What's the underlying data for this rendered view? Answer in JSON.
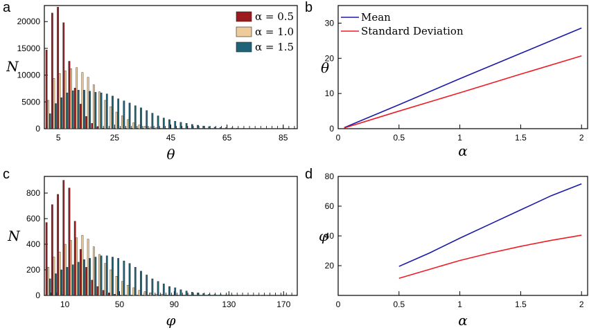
{
  "colors": {
    "alpha05": "#9B1B1E",
    "alpha10": "#EDCB9A",
    "alpha15": "#1F6378",
    "mean": "#1A1AA8",
    "std": "#EE1C25"
  },
  "chart_data": [
    {
      "panel": "a",
      "type": "bar",
      "xlabel": "θ",
      "ylabel": "N",
      "ylim": [
        0,
        23000
      ],
      "xlim": [
        0,
        90
      ],
      "xticks": [
        5,
        25,
        45,
        65,
        85
      ],
      "yticks": [
        0,
        5000,
        10000,
        15000,
        20000
      ],
      "bin_start": 1,
      "bin_width": 2,
      "legend": [
        "α = 0.5",
        "α = 1.0",
        "α = 1.5"
      ],
      "legend_position": "top-right",
      "series": [
        {
          "name": "α = 0.5",
          "values": [
            14700,
            21600,
            22700,
            19800,
            12600,
            7600,
            4600,
            2300,
            1000,
            350,
            100,
            30,
            10,
            0,
            0,
            0,
            0,
            0,
            0,
            0,
            0,
            0,
            0,
            0,
            0,
            0,
            0,
            0,
            0,
            0,
            0,
            0,
            0,
            0,
            0,
            0,
            0,
            0,
            0,
            0,
            0,
            0,
            0,
            0
          ]
        },
        {
          "name": "α = 1.0",
          "values": [
            5300,
            9400,
            10300,
            10800,
            11200,
            11400,
            10500,
            9600,
            8200,
            6900,
            5300,
            4100,
            3100,
            2400,
            1700,
            1100,
            700,
            450,
            300,
            200,
            120,
            80,
            50,
            30,
            20,
            10,
            0,
            0,
            0,
            0,
            0,
            0,
            0,
            0,
            0,
            0,
            0,
            0,
            0,
            0,
            0,
            0,
            0,
            0
          ]
        },
        {
          "name": "α = 1.5",
          "values": [
            2800,
            4700,
            5800,
            6700,
            7100,
            7200,
            7200,
            7000,
            6800,
            6700,
            6500,
            6100,
            5600,
            5200,
            4800,
            4300,
            3900,
            3400,
            2900,
            2400,
            2000,
            1700,
            1400,
            1200,
            1000,
            800,
            650,
            500,
            400,
            300,
            250,
            200,
            150,
            110,
            80,
            60,
            40,
            30,
            20,
            10,
            10,
            0,
            0,
            0
          ]
        }
      ]
    },
    {
      "panel": "b",
      "type": "line",
      "xlabel": "α",
      "ylabel": "θ",
      "xlim": [
        0,
        2.05
      ],
      "ylim": [
        0,
        35
      ],
      "xticks": [
        0,
        0.5,
        1,
        1.5,
        2
      ],
      "yticks": [
        0,
        10,
        20,
        30
      ],
      "legend_position": "top-left",
      "series": [
        {
          "name": "Mean",
          "x": [
            0.05,
            0.5,
            1.0,
            1.5,
            2.0
          ],
          "y": [
            0.3,
            6.8,
            14.2,
            21.4,
            28.6
          ]
        },
        {
          "name": "Standard Deviation",
          "x": [
            0.05,
            0.5,
            1.0,
            1.5,
            2.0
          ],
          "y": [
            0.2,
            5.0,
            10.2,
            15.5,
            20.7
          ]
        }
      ]
    },
    {
      "panel": "c",
      "type": "bar",
      "xlabel": "φ",
      "ylabel": "N",
      "ylim": [
        0,
        930
      ],
      "xlim": [
        -5,
        180
      ],
      "xticks": [
        10,
        50,
        90,
        130,
        170
      ],
      "yticks": [
        0,
        200,
        400,
        600,
        800
      ],
      "bin_start": 0,
      "bin_width": 4,
      "series": [
        {
          "name": "α = 0.5",
          "values": [
            570,
            710,
            790,
            900,
            840,
            580,
            360,
            220,
            120,
            70,
            40,
            20,
            10,
            0,
            0,
            0,
            0,
            0,
            0,
            0,
            0,
            0,
            0,
            0,
            0,
            0,
            0,
            0,
            0,
            0,
            0,
            0,
            0,
            0,
            0,
            0,
            0,
            0,
            0,
            0,
            0,
            0,
            0,
            0
          ]
        },
        {
          "name": "α = 1.0",
          "values": [
            220,
            300,
            340,
            400,
            430,
            450,
            470,
            440,
            380,
            320,
            250,
            200,
            150,
            110,
            80,
            60,
            40,
            30,
            20,
            10,
            10,
            0,
            0,
            0,
            0,
            0,
            0,
            0,
            0,
            0,
            0,
            0,
            0,
            0,
            0,
            0,
            0,
            0,
            0,
            0,
            0,
            0,
            0,
            0
          ]
        },
        {
          "name": "α = 1.5",
          "values": [
            130,
            170,
            200,
            220,
            240,
            260,
            280,
            290,
            300,
            310,
            310,
            300,
            290,
            270,
            250,
            220,
            190,
            160,
            130,
            110,
            90,
            70,
            60,
            45,
            35,
            25,
            20,
            15,
            10,
            8,
            6,
            5,
            4,
            3,
            2,
            2,
            1,
            1,
            1,
            0,
            0,
            0,
            0,
            0
          ]
        }
      ]
    },
    {
      "panel": "d",
      "type": "line",
      "xlabel": "α",
      "ylabel": "φ",
      "xlim": [
        0,
        2.05
      ],
      "ylim": [
        0,
        80
      ],
      "xticks": [
        0,
        0.5,
        1,
        1.5,
        2
      ],
      "yticks": [
        20,
        40,
        60,
        80
      ],
      "series": [
        {
          "name": "Mean",
          "x": [
            0.5,
            0.75,
            1.0,
            1.25,
            1.5,
            1.75,
            2.0
          ],
          "y": [
            19.5,
            28.5,
            38.5,
            48.0,
            57.5,
            67.0,
            75.0
          ]
        },
        {
          "name": "Standard Deviation",
          "x": [
            0.5,
            0.75,
            1.0,
            1.25,
            1.5,
            1.75,
            2.0
          ],
          "y": [
            11.5,
            17.5,
            23.5,
            28.5,
            33.0,
            37.0,
            40.5
          ]
        }
      ]
    }
  ]
}
